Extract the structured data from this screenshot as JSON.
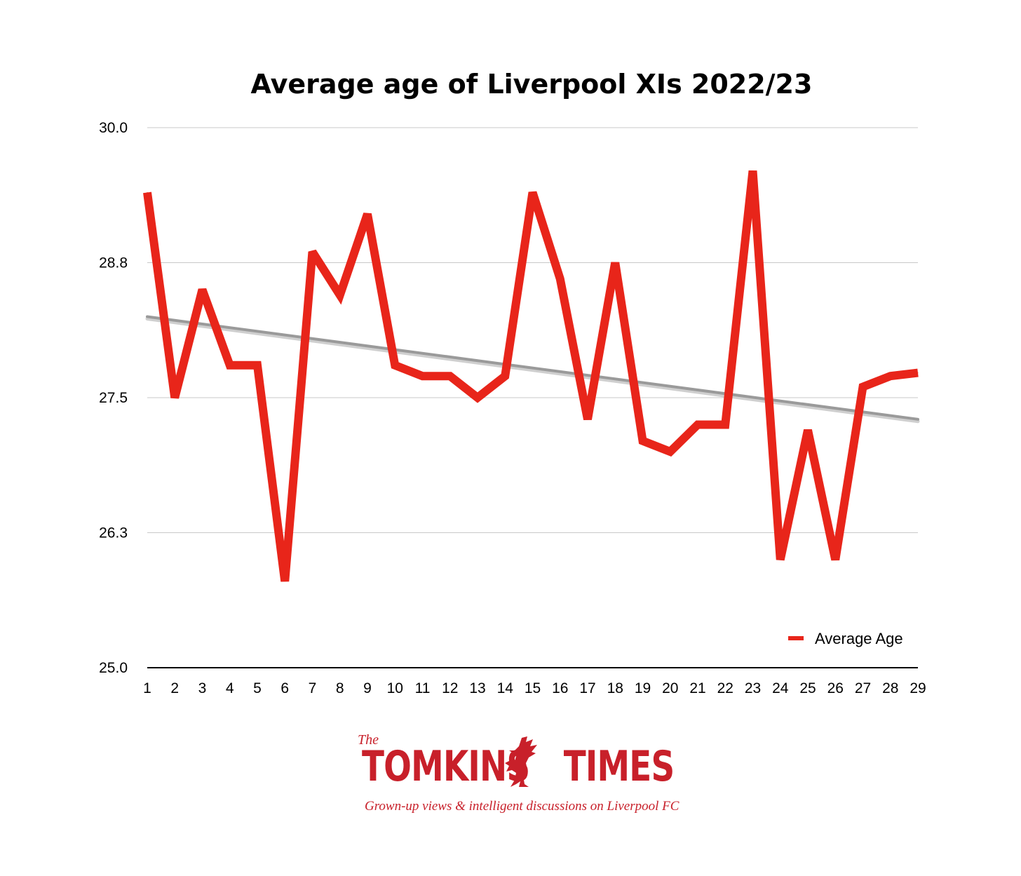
{
  "chart_data": {
    "type": "line",
    "title": "Average age of Liverpool XIs 2022/23",
    "xlabel": "",
    "ylabel": "",
    "x": [
      1,
      2,
      3,
      4,
      5,
      6,
      7,
      8,
      9,
      10,
      11,
      12,
      13,
      14,
      15,
      16,
      17,
      18,
      19,
      20,
      21,
      22,
      23,
      24,
      25,
      26,
      27,
      28,
      29
    ],
    "x_tick_labels": [
      "1",
      "2",
      "3",
      "4",
      "5",
      "6",
      "7",
      "8",
      "9",
      "10",
      "11",
      "12",
      "13",
      "14",
      "15",
      "16",
      "17",
      "18",
      "19",
      "20",
      "21",
      "22",
      "23",
      "24",
      "25",
      "26",
      "27",
      "28",
      "29"
    ],
    "y_tick_labels": [
      "30.0",
      "28.8",
      "27.5",
      "26.3",
      "25.0"
    ],
    "y_ticks": [
      30.0,
      28.75,
      27.5,
      26.25,
      25.0
    ],
    "ylim": [
      25.0,
      30.0
    ],
    "series": [
      {
        "name": "Average Age",
        "color": "#e8251a",
        "values": [
          29.4,
          27.5,
          28.5,
          27.8,
          27.8,
          25.8,
          28.85,
          28.45,
          29.2,
          27.8,
          27.7,
          27.7,
          27.5,
          27.7,
          29.4,
          28.6,
          27.3,
          28.75,
          27.1,
          27.0,
          27.25,
          27.25,
          29.6,
          26.0,
          27.2,
          26.0,
          27.6,
          27.7,
          27.73
        ]
      }
    ],
    "trendline": {
      "color": "#9a9a9a",
      "start": 28.25,
      "end": 27.3
    },
    "grid": true,
    "legend_position": "bottom-right"
  },
  "logo": {
    "the": "The",
    "name_left": "TOMKINS",
    "name_right": "TIMES",
    "tagline": "Grown-up views & intelligent discussions on Liverpool FC"
  }
}
